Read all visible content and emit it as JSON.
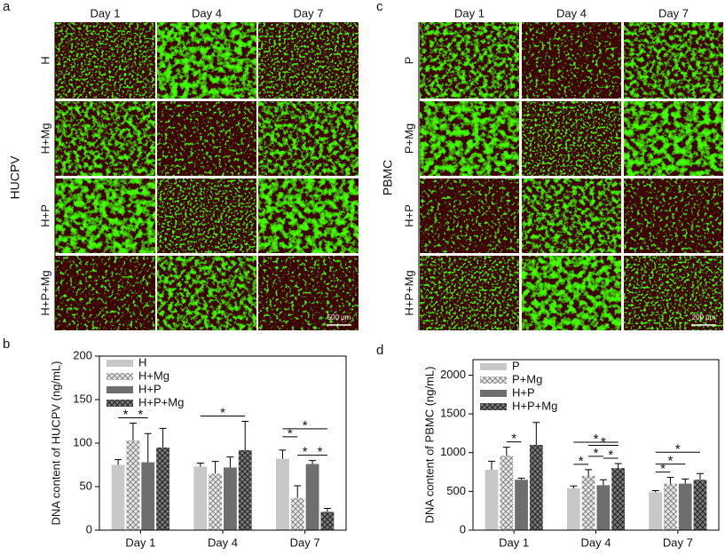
{
  "panels": {
    "a": {
      "label": "a",
      "columns": [
        "Day 1",
        "Day 4",
        "Day 7"
      ],
      "rows": [
        "H",
        "H+Mg",
        "H+P",
        "H+P+Mg"
      ],
      "group": "HUCPV",
      "scale_bar": "500 μm"
    },
    "c": {
      "label": "c",
      "columns": [
        "Day 1",
        "Day 4",
        "Day 7"
      ],
      "rows": [
        "P",
        "P+Mg",
        "H+P",
        "H+P+Mg"
      ],
      "group": "PBMC",
      "scale_bar": "200 μm"
    },
    "b": {
      "label": "b"
    },
    "d": {
      "label": "d"
    }
  },
  "chart_data": [
    {
      "type": "bar",
      "ylabel": "DNA content of HUCPV (ng/mL)",
      "categories": [
        "Day 1",
        "Day 4",
        "Day 7"
      ],
      "series": [
        {
          "name": "H",
          "color": "#c8c8c8",
          "hatch": false,
          "values": [
            75,
            73,
            82
          ],
          "errors": [
            6,
            4,
            10
          ]
        },
        {
          "name": "H+Mg",
          "color": "#d9d9d9",
          "hatch": true,
          "values": [
            103,
            65,
            37
          ],
          "errors": [
            20,
            14,
            14
          ]
        },
        {
          "name": "H+P",
          "color": "#6e6e6e",
          "hatch": false,
          "values": [
            78,
            72,
            76
          ],
          "errors": [
            33,
            12,
            4
          ]
        },
        {
          "name": "H+P+Mg",
          "color": "#5a5a5a",
          "hatch": true,
          "values": [
            95,
            92,
            21
          ],
          "errors": [
            22,
            33,
            4
          ]
        }
      ],
      "ylim": [
        0,
        200
      ],
      "yticks": [
        0,
        50,
        100,
        150,
        200
      ],
      "legend": "upper left",
      "annotations": [
        "*",
        "*",
        "*",
        "*",
        "*",
        "*",
        "*"
      ]
    },
    {
      "type": "bar",
      "ylabel": "DNA content of PBMC (ng/mL)",
      "categories": [
        "Day 1",
        "Day 4",
        "Day 7"
      ],
      "series": [
        {
          "name": "P",
          "color": "#c8c8c8",
          "hatch": false,
          "values": [
            780,
            540,
            490
          ],
          "errors": [
            110,
            30,
            20
          ]
        },
        {
          "name": "P+Mg",
          "color": "#d9d9d9",
          "hatch": true,
          "values": [
            960,
            700,
            600
          ],
          "errors": [
            110,
            80,
            80
          ]
        },
        {
          "name": "H+P",
          "color": "#6e6e6e",
          "hatch": false,
          "values": [
            650,
            580,
            600
          ],
          "errors": [
            20,
            70,
            60
          ]
        },
        {
          "name": "H+P+Mg",
          "color": "#5a5a5a",
          "hatch": true,
          "values": [
            1100,
            800,
            650
          ],
          "errors": [
            290,
            60,
            80
          ]
        }
      ],
      "ylim": [
        0,
        2200
      ],
      "yticks": [
        0,
        500,
        1000,
        1500,
        2000
      ],
      "legend": "upper left",
      "annotations": [
        "*",
        "*",
        "*",
        "*",
        "*",
        "*",
        "*",
        "*",
        "*"
      ]
    }
  ]
}
